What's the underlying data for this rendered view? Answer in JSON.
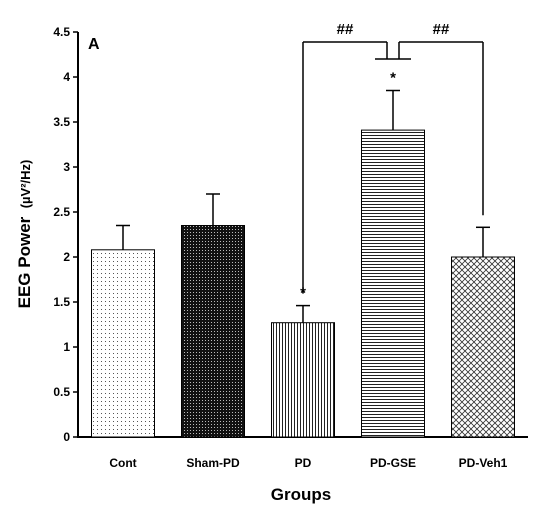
{
  "chart_data": {
    "type": "bar",
    "panel_label": "A",
    "xlabel": "Groups",
    "ylabel": "EEG Power",
    "ylabel_unit": "(µV²/Hz)",
    "ylim": [
      0,
      4.5
    ],
    "yticks": [
      "0",
      "0.5",
      "1",
      "1.5",
      "2",
      "2.5",
      "3",
      "3.5",
      "4",
      "4.5"
    ],
    "categories": [
      "Cont",
      "Sham-PD",
      "PD",
      "PD-GSE",
      "PD-Veh1"
    ],
    "values": [
      2.08,
      2.35,
      1.27,
      3.41,
      2.0
    ],
    "errors": [
      0.27,
      0.35,
      0.19,
      0.44,
      0.33
    ],
    "patterns": [
      "dots",
      "dense-dots",
      "vertical-lines",
      "horizontal-lines",
      "crosshatch"
    ],
    "significance": {
      "stars": [
        {
          "category": "PD",
          "label": "*"
        },
        {
          "category": "PD-GSE",
          "label": "*"
        }
      ],
      "brackets": [
        {
          "from": "PD",
          "to": "PD-GSE",
          "label": "##"
        },
        {
          "from": "PD-GSE",
          "to": "PD-Veh1",
          "label": "##"
        }
      ]
    },
    "grid": false,
    "legend": "none"
  }
}
